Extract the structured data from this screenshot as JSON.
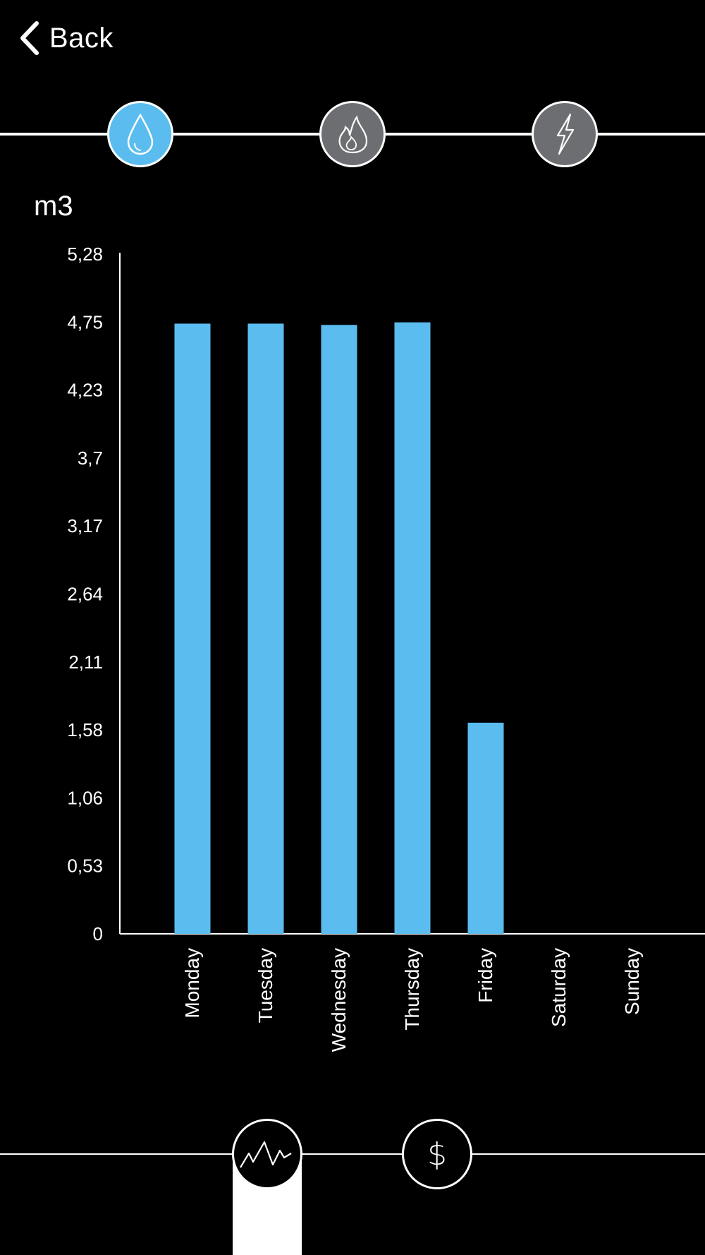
{
  "nav": {
    "back_label": "Back"
  },
  "tabs": [
    {
      "name": "water",
      "icon": "water-drop-icon",
      "active": true
    },
    {
      "name": "gas",
      "icon": "flame-icon",
      "active": false
    },
    {
      "name": "electricity",
      "icon": "lightning-icon",
      "active": false
    }
  ],
  "colors": {
    "accent": "#5bbdef",
    "inactive_tab": "#6d6e71",
    "background": "#000000",
    "foreground": "#ffffff"
  },
  "chart_data": {
    "type": "bar",
    "title": "",
    "xlabel": "",
    "ylabel": "m3",
    "categories": [
      "Monday",
      "Tuesday",
      "Wednesday",
      "Thursday",
      "Friday",
      "Saturday",
      "Sunday"
    ],
    "values": [
      4.74,
      4.74,
      4.73,
      4.75,
      1.64,
      0,
      0
    ],
    "y_ticks": [
      "0",
      "0,53",
      "1,06",
      "1,58",
      "2,11",
      "2,64",
      "3,17",
      "3,7",
      "4,23",
      "4,75",
      "5,28"
    ],
    "ylim": [
      0,
      5.28
    ],
    "grid": false,
    "legend": "none"
  },
  "bottom_modes": [
    {
      "name": "consumption",
      "icon": "line-graph-icon",
      "active": true
    },
    {
      "name": "cost",
      "icon": "dollar-icon",
      "symbol": "$",
      "active": false
    }
  ]
}
